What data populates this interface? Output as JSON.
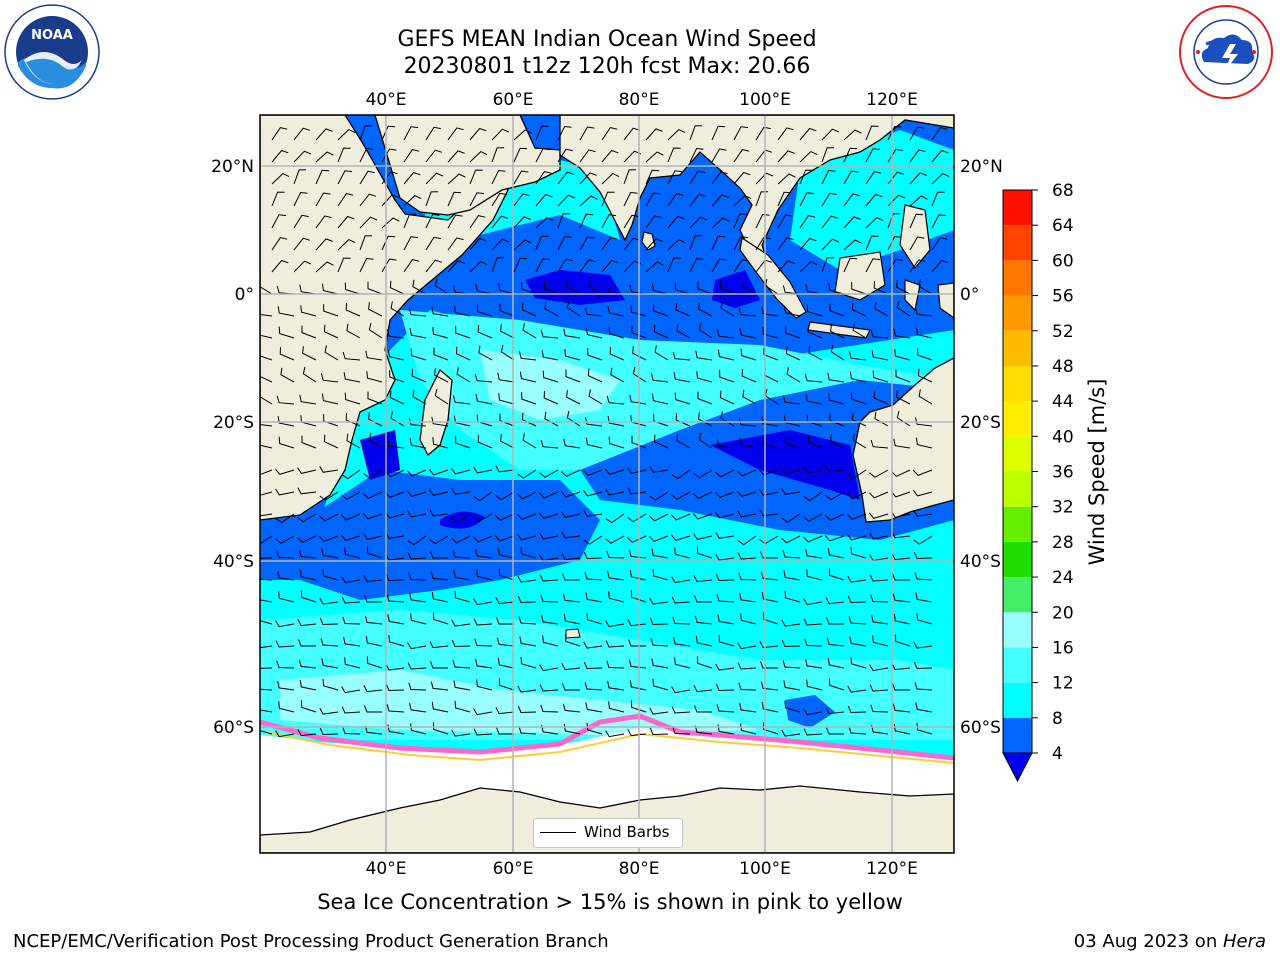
{
  "title": {
    "line1": "GEFS MEAN Indian Ocean Wind Speed",
    "line2": "20230801 t12z 120h fcst   Max: 20.66"
  },
  "logos": {
    "left": "noaa-logo",
    "right": "nws-logo"
  },
  "map": {
    "lon_ticks": [
      "40°E",
      "60°E",
      "80°E",
      "100°E",
      "120°E"
    ],
    "lat_ticks": [
      "20°N",
      "0°",
      "20°S",
      "40°S",
      "60°S"
    ],
    "lon_range": [
      20,
      130
    ],
    "lat_range": [
      -73,
      28
    ],
    "gridlines": true,
    "max_wind": 20.66
  },
  "legend": {
    "label": "Wind Barbs",
    "placement": "lower-center"
  },
  "colorbar": {
    "label": "Wind Speed [m/s]",
    "ticks": [
      "4",
      "8",
      "12",
      "16",
      "20",
      "24",
      "28",
      "32",
      "36",
      "40",
      "44",
      "48",
      "52",
      "56",
      "60",
      "64",
      "68"
    ],
    "colors": [
      "#0066ff",
      "#00ffff",
      "#44ffff",
      "#99ffff",
      "#44ee66",
      "#22dd00",
      "#66ee00",
      "#bbff00",
      "#ddff00",
      "#ffee00",
      "#ffdd00",
      "#ffbb00",
      "#ff9900",
      "#ff7700",
      "#ff4400",
      "#ff1100"
    ],
    "under_color": "#0000ee",
    "ocean_colors": {
      "dark": "#0000ee",
      "mid": "#0066ff",
      "cyan": "#00ffff",
      "light": "#99ffff",
      "land": "#efeedd",
      "ice": "#ffffff",
      "ice_edge": "#ff66cc"
    }
  },
  "subtitle": "Sea Ice Concentration > 15% is shown in pink to yellow",
  "footer": {
    "left": "NCEP/EMC/Verification Post Processing Product Generation Branch",
    "right_date": "03 Aug 2023 on ",
    "right_host": "Hera"
  }
}
